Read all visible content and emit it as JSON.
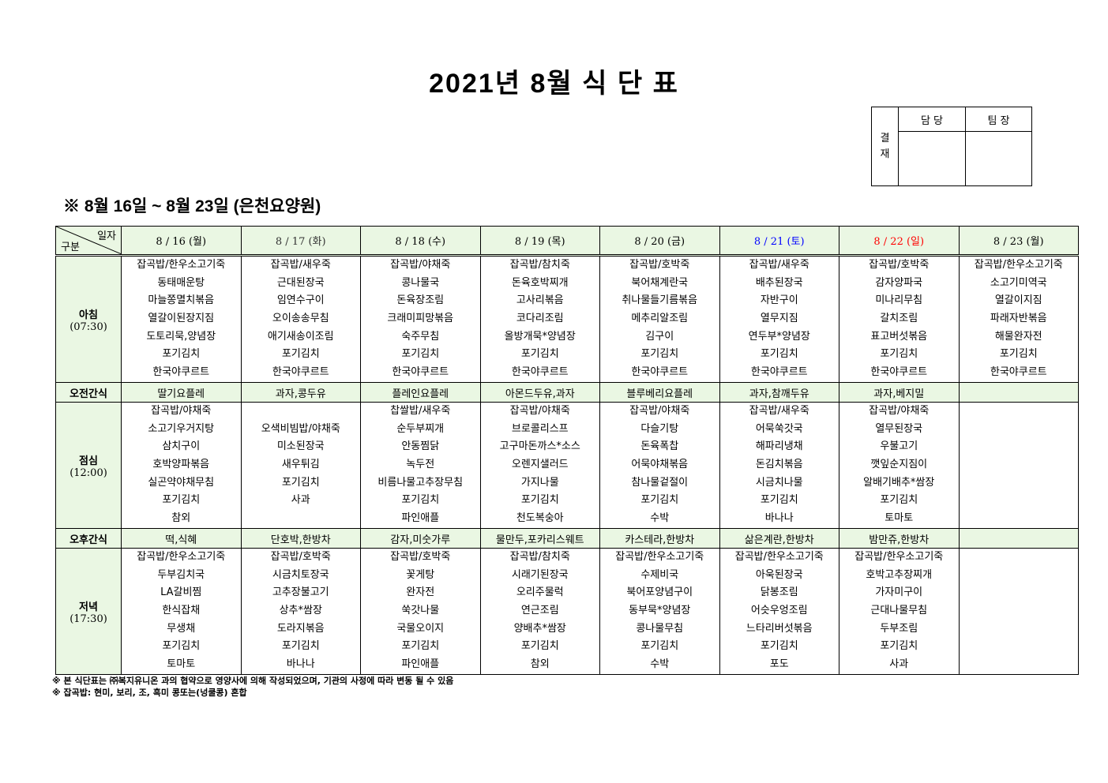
{
  "title": "2021년 8월 식 단 표",
  "approval": {
    "label": "결\n재",
    "label_top": "결",
    "label_bottom": "재",
    "col1": "담 당",
    "col2": "팀 장"
  },
  "subtitle": "※ 8월 16일 ~ 8월 23일 (은천요양원)",
  "corner": {
    "top_right": "일자",
    "bottom_left": "구분"
  },
  "colors": {
    "header_bg": "#eaf7e3",
    "saturday": "#0000ff",
    "sunday": "#ff0000"
  },
  "days": [
    {
      "label": "8 / 16 (월)",
      "color": "#000000"
    },
    {
      "label": "8 / 17 (화)",
      "color": "#333333"
    },
    {
      "label": "8 / 18 (수)",
      "color": "#000000"
    },
    {
      "label": "8 / 19 (목)",
      "color": "#000000"
    },
    {
      "label": "8 / 20 (금)",
      "color": "#000000"
    },
    {
      "label": "8 / 21 (토)",
      "color": "#0000ff"
    },
    {
      "label": "8 / 22 (일)",
      "color": "#ff0000"
    },
    {
      "label": "8 / 23 (월)",
      "color": "#000000"
    }
  ],
  "rows": {
    "breakfast": {
      "label": "아침",
      "time": "(07:30)",
      "cells": [
        [
          "잡곡밥/한우소고기죽",
          "동태매운탕",
          "마늘쫑멸치볶음",
          "열갈이된장지짐",
          "도토리묵,양념장",
          "포기김치",
          "한국야쿠르트"
        ],
        [
          "잡곡밥/새우죽",
          "근대된장국",
          "임연수구이",
          "오이송송무침",
          "애기새송이조림",
          "포기김치",
          "한국야쿠르트"
        ],
        [
          "잡곡밥/야채죽",
          "콩나물국",
          "돈육장조림",
          "크래미피망볶음",
          "숙주무침",
          "포기김치",
          "한국야쿠르트"
        ],
        [
          "잡곡밥/참치죽",
          "돈육호박찌개",
          "고사리볶음",
          "코다리조림",
          "올방개묵*양념장",
          "포기김치",
          "한국야쿠르트"
        ],
        [
          "잡곡밥/호박죽",
          "북어채계란국",
          "취나물들기름볶음",
          "메추리알조림",
          "김구이",
          "포기김치",
          "한국야쿠르트"
        ],
        [
          "잡곡밥/새우죽",
          "배추된장국",
          "자반구이",
          "열무지짐",
          "연두부*양념장",
          "포기김치",
          "한국야쿠르트"
        ],
        [
          "잡곡밥/호박죽",
          "감자양파국",
          "미나리무침",
          "갈치조림",
          "표고버섯볶음",
          "포기김치",
          "한국야쿠르트"
        ],
        [
          "잡곡밥/한우소고기죽",
          "소고기미역국",
          "열갈이지짐",
          "파래자반볶음",
          "해물완자전",
          "포기김치",
          "한국야쿠르트"
        ]
      ]
    },
    "am_snack": {
      "label": "오전간식",
      "cells": [
        "딸기요플레",
        "과자,콩두유",
        "플레인요플레",
        "아몬드두유,과자",
        "블루베리요플레",
        "과자,참깨두유",
        "과자,베지밀",
        ""
      ]
    },
    "lunch": {
      "label": "점심",
      "time": "(12:00)",
      "cells": [
        [
          "잡곡밥/야채죽",
          "소고기우거지탕",
          "삼치구이",
          "호박양파볶음",
          "실곤약야채무침",
          "포기김치",
          "참외"
        ],
        [
          "",
          "오색비빔밥/야채죽",
          "미소된장국",
          "새우튀김",
          "포기김치",
          "사과",
          ""
        ],
        [
          "찹쌀밥/새우죽",
          "순두부찌개",
          "안동찜닭",
          "녹두전",
          "비름나물고추장무침",
          "포기김치",
          "파인애플"
        ],
        [
          "잡곡밥/야채죽",
          "브로콜리스프",
          "고구마돈까스*소스",
          "오렌지샐러드",
          "가지나물",
          "포기김치",
          "천도복숭아"
        ],
        [
          "잡곡밥/야채죽",
          "다슬기탕",
          "돈육폭찹",
          "어묵야채볶음",
          "참나물겉절이",
          "포기김치",
          "수박"
        ],
        [
          "잡곡밥/새우죽",
          "어묵쑥갓국",
          "해파리냉채",
          "돈김치볶음",
          "시금치나물",
          "포기김치",
          "바나나"
        ],
        [
          "잡곡밥/야채죽",
          "열무된장국",
          "우불고기",
          "깻잎순지짐이",
          "알배기배추*쌈장",
          "포기김치",
          "토마토"
        ],
        []
      ]
    },
    "pm_snack": {
      "label": "오후간식",
      "cells": [
        "떡,식혜",
        "단호박,한방차",
        "감자,미숫가루",
        "물만두,포카리스웨트",
        "카스테라,한방차",
        "삶은계란,한방차",
        "밤만쥬,한방차",
        ""
      ]
    },
    "dinner": {
      "label": "저녁",
      "time": "(17:30)",
      "cells": [
        [
          "잡곡밥/한우소고기죽",
          "두부김치국",
          "LA갈비찜",
          "한식잡채",
          "무생채",
          "포기김치",
          "토마토"
        ],
        [
          "잡곡밥/호박죽",
          "시금치토장국",
          "고추장불고기",
          "상추*쌈장",
          "도라지볶음",
          "포기김치",
          "바나나"
        ],
        [
          "잡곡밥/호박죽",
          "꽃게탕",
          "완자전",
          "쑥갓나물",
          "국물오이지",
          "포기김치",
          "파인애플"
        ],
        [
          "잡곡밥/참치죽",
          "시래기된장국",
          "오리주물럭",
          "연근조림",
          "양배추*쌈장",
          "포기김치",
          "참외"
        ],
        [
          "잡곡밥/한우소고기죽",
          "수제비국",
          "북어포양념구이",
          "동부묵*양념장",
          "콩나물무침",
          "포기김치",
          "수박"
        ],
        [
          "잡곡밥/한우소고기죽",
          "아욱된장국",
          "닭봉조림",
          "어슷우엉조림",
          "느타리버섯볶음",
          "포기김치",
          "포도"
        ],
        [
          "잡곡밥/한우소고기죽",
          "호박고추장찌개",
          "가자미구이",
          "근대나물무침",
          "두부조림",
          "포기김치",
          "사과"
        ],
        []
      ]
    }
  },
  "notes": [
    "※ 본 식단표는 ㈜복지유니온 과의 협약으로 영양사에 의해 작성되었으며, 기관의 사정에 따라 변동 될 수 있음",
    "※ 잡곡밥: 현미, 보리, 조, 흑미 콩또는(넝쿨콩) 혼합"
  ]
}
